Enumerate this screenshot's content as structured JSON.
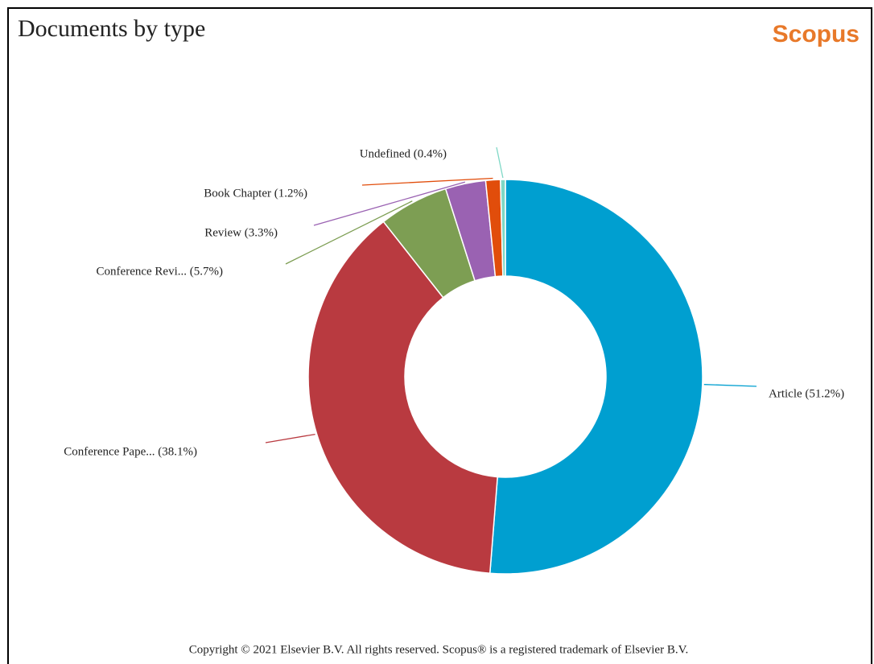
{
  "header": {
    "title": "Documents by type",
    "logo": "Scopus"
  },
  "chart_data": {
    "type": "donut",
    "labels": [
      "Article (51.2%)",
      "Conference Pape... (38.1%)",
      "Conference Revi... (5.7%)",
      "Review (3.3%)",
      "Book Chapter (1.2%)",
      "Undefined (0.4%)"
    ],
    "values": [
      51.2,
      38.1,
      5.7,
      3.3,
      1.2,
      0.4
    ],
    "colors": [
      "#009fd0",
      "#b93a40",
      "#7d9e53",
      "#9a62b2",
      "#e14d0b",
      "#7fd8c6"
    ]
  },
  "footer": {
    "copyright": "Copyright © 2021 Elsevier B.V. All rights reserved. Scopus® is a registered trademark of Elsevier B.V."
  }
}
